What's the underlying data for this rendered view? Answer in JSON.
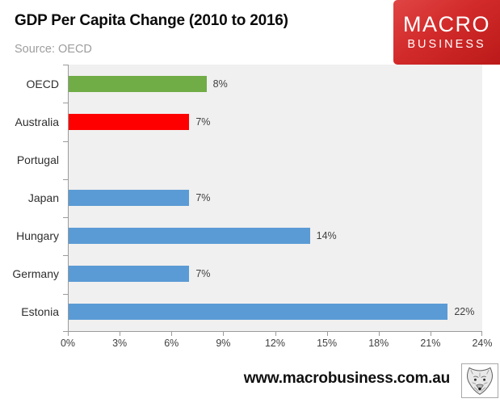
{
  "header": {
    "title": "GDP Per Capita Change (2010 to 2016)",
    "source": "Source: OECD",
    "logo": {
      "line1": "MACRO",
      "line2": "BUSINESS",
      "bg_color": "#d22a2a",
      "text_color": "#ffffff"
    }
  },
  "chart_data": {
    "type": "bar",
    "orientation": "horizontal",
    "title": "GDP Per Capita Change (2010 to 2016)",
    "categories": [
      "OECD",
      "Australia",
      "Portugal",
      "Japan",
      "Hungary",
      "Germany",
      "Estonia"
    ],
    "values": [
      8,
      7,
      0,
      7,
      14,
      7,
      22
    ],
    "value_labels": [
      "8%",
      "7%",
      "",
      "7%",
      "14%",
      "7%",
      "22%"
    ],
    "bar_colors": [
      "#70AD47",
      "#FF0000",
      "#5B9BD5",
      "#5B9BD5",
      "#5B9BD5",
      "#5B9BD5",
      "#5B9BD5"
    ],
    "x_ticks": [
      "0%",
      "3%",
      "6%",
      "9%",
      "12%",
      "15%",
      "18%",
      "21%",
      "24%"
    ],
    "xlim": [
      0,
      24
    ],
    "grid": false,
    "legend": "none",
    "plot_bg": "#f0f0f0",
    "axis_color": "#9b9b9b",
    "xlabel": "",
    "ylabel": ""
  },
  "footer": {
    "url": "www.macrobusiness.com.au"
  },
  "icons": {
    "footer_logo": "fox-head-sketch-icon"
  }
}
